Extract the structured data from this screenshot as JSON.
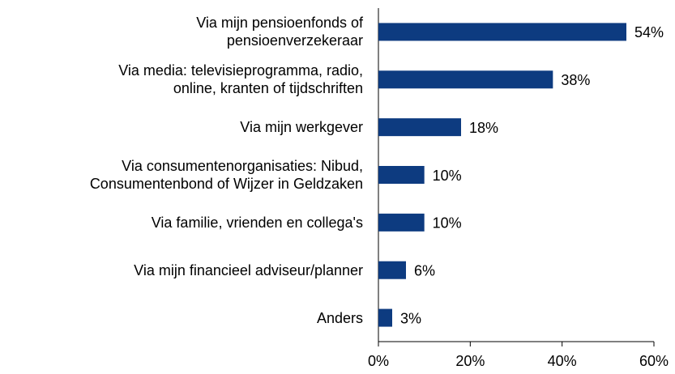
{
  "chart_data": {
    "type": "hbar",
    "categories": [
      "Via mijn pensioenfonds of\npensioenverzekeraar",
      "Via media: televisieprogramma, radio,\nonline, kranten of tijdschriften",
      "Via mijn werkgever",
      "Via consumentenorganisaties: Nibud,\nConsumentenbond of Wijzer in Geldzaken",
      "Via familie, vrienden en collega's",
      "Via mijn financieel adviseur/planner",
      "Anders"
    ],
    "values": [
      54,
      38,
      18,
      10,
      10,
      6,
      3
    ],
    "value_labels": [
      "54%",
      "38%",
      "18%",
      "10%",
      "10%",
      "6%",
      "3%"
    ],
    "color": "#0d3b80",
    "xlim": [
      0,
      60
    ],
    "xticks": [
      {
        "value": 0,
        "label": "0%"
      },
      {
        "value": 20,
        "label": "20%"
      },
      {
        "value": 40,
        "label": "40%"
      },
      {
        "value": 60,
        "label": "60%"
      }
    ],
    "grid": false
  }
}
